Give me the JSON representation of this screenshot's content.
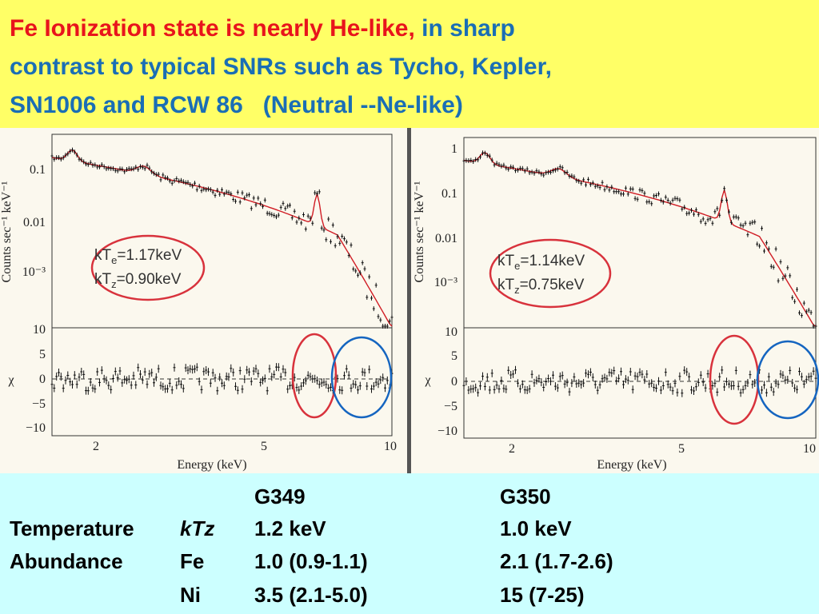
{
  "header": {
    "line1_red": "Fe Ionization state is nearly He-like,",
    "line1_blue": "in sharp",
    "line2": "contrast to typical SNRs such as Tycho, Kepler,",
    "line3": "SN1006 and RCW 86   (Neutral --Ne-like)"
  },
  "panels": [
    {
      "y_label": "Counts sec⁻¹ keV⁻¹",
      "y_ticks": [
        "0.1",
        "0.01",
        "10⁻³"
      ],
      "residual_label": "χ",
      "residual_ticks": [
        "10",
        "5",
        "0",
        "−5",
        "−10"
      ],
      "x_ticks": [
        "2",
        "5",
        "10"
      ],
      "x_label": "Energy (keV)",
      "annotation": [
        {
          "prefix": "kT",
          "sub": "e",
          "rest": "=1.17keV"
        },
        {
          "prefix": "kT",
          "sub": "z",
          "rest": "=0.90keV"
        }
      ]
    },
    {
      "y_label": "Counts sec⁻¹ keV⁻¹",
      "y_ticks": [
        "1",
        "0.1",
        "0.01",
        "10⁻³"
      ],
      "residual_label": "χ",
      "residual_ticks": [
        "10",
        "5",
        "0",
        "−5",
        "−10"
      ],
      "x_ticks": [
        "2",
        "5",
        "10"
      ],
      "x_label": "Energy (keV)",
      "annotation": [
        {
          "prefix": "kT",
          "sub": "e",
          "rest": "=1.14keV"
        },
        {
          "prefix": "kT",
          "sub": "z",
          "rest": "=0.75keV"
        }
      ]
    }
  ],
  "table": {
    "columns": [
      "G349",
      "G350"
    ],
    "rows": [
      {
        "label": "Temperature",
        "param": "kTz",
        "g349": "1.2 keV",
        "g350": "1.0 keV"
      },
      {
        "label": "Abundance",
        "param": "Fe",
        "g349": "1.0 (0.9-1.1)",
        "g350": "2.1 (1.7-2.6)"
      },
      {
        "param": "Ni",
        "g349": "3.5 (2.1-5.0)",
        "g350": "15 (7-25)"
      }
    ]
  }
}
